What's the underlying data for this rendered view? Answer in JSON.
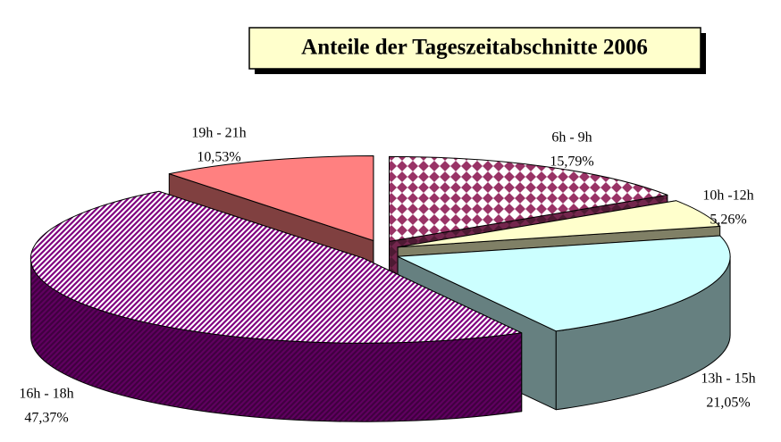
{
  "chart_data": {
    "type": "pie3d",
    "title": "Anteile der Tageszeitabschnitte 2006",
    "categories": [
      "6h - 9h",
      "10h -12h",
      "13h - 15h",
      "16h - 18h",
      "19h - 21h"
    ],
    "values": [
      15.79,
      5.26,
      21.05,
      47.37,
      10.53
    ],
    "value_labels": [
      "15,79%",
      "5,26%",
      "21,05%",
      "47,37%",
      "10,53%"
    ],
    "colors": [
      "#993366",
      "#ffffcc",
      "#ccffff",
      "#800080",
      "#ff8080"
    ],
    "patterns": [
      "diamond",
      null,
      null,
      "stripes",
      null
    ]
  }
}
